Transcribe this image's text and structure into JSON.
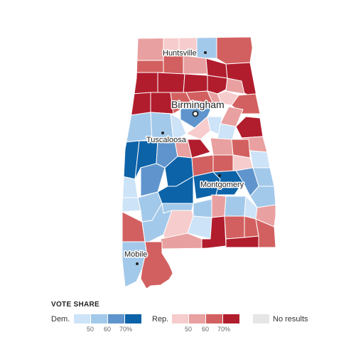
{
  "colors": {
    "dem": [
      "#cde3f7",
      "#a3c9ea",
      "#5f95cc",
      "#0d63a8"
    ],
    "rep": [
      "#f7cccc",
      "#e9a0a0",
      "#d36060",
      "#b11d2d"
    ],
    "no_results": "#e6e6e6"
  },
  "cities": [
    {
      "name": "Huntsville",
      "size": "small"
    },
    {
      "name": "Birmingham",
      "size": "large"
    },
    {
      "name": "Tuscaloosa",
      "size": "small"
    },
    {
      "name": "Montgomery",
      "size": "small"
    },
    {
      "name": "Mobile",
      "size": "small"
    }
  ],
  "legend": {
    "title": "VOTE SHARE",
    "dem_label": "Dem.",
    "rep_label": "Rep.",
    "ticks": [
      "50",
      "60",
      "70%"
    ],
    "no_results_label": "No results"
  }
}
